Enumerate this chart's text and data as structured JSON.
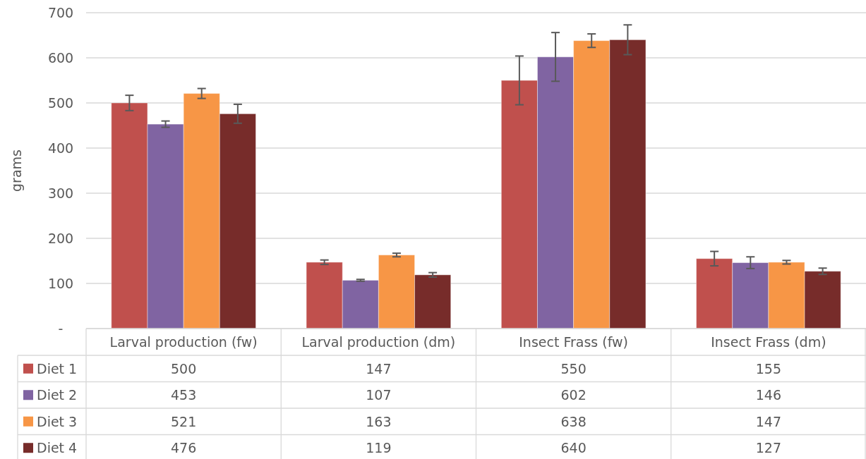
{
  "chart_data": {
    "type": "bar",
    "ylabel": "grams",
    "categories": [
      "Larval production (fw)",
      "Larval production (dm)",
      "Insect Frass (fw)",
      "Insect Frass (dm)"
    ],
    "series": [
      {
        "name": "Diet 1",
        "color": "#c0504d",
        "values": [
          500,
          147,
          550,
          155
        ],
        "errors": [
          17,
          5,
          54,
          16
        ]
      },
      {
        "name": "Diet 2",
        "color": "#8064a2",
        "values": [
          453,
          107,
          602,
          146
        ],
        "errors": [
          7,
          2,
          54,
          13
        ]
      },
      {
        "name": "Diet 3",
        "color": "#f79646",
        "values": [
          521,
          163,
          638,
          147
        ],
        "errors": [
          11,
          4,
          15,
          4
        ]
      },
      {
        "name": "Diet 4",
        "color": "#772c2a",
        "values": [
          476,
          119,
          640,
          127
        ],
        "errors": [
          21,
          5,
          33,
          7
        ]
      }
    ],
    "ylim": [
      0,
      700
    ],
    "yticks": [
      {
        "value": 0,
        "label": "-"
      },
      100,
      200,
      300,
      400,
      500,
      600,
      700
    ],
    "grid": "y",
    "legend": "bottom",
    "data_labels": true
  }
}
